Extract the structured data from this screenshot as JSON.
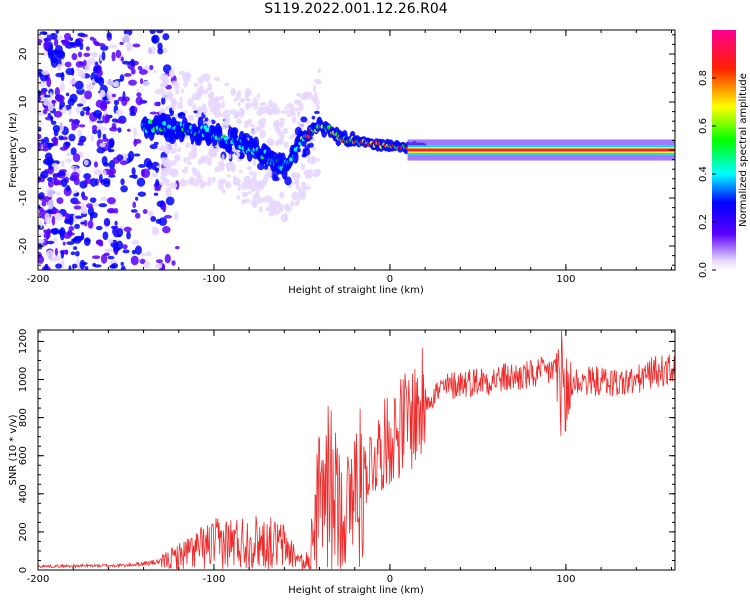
{
  "figure": {
    "title": "S119.2022.001.12.26.R04"
  },
  "chart_data": [
    {
      "type": "heatmap",
      "title": "",
      "xlabel": "Height of straight line (km)",
      "ylabel": "Frequency (Hz)",
      "xlim": [
        -200,
        162
      ],
      "ylim": [
        -25,
        25
      ],
      "x_ticks": [
        -200,
        -100,
        0,
        100
      ],
      "x_tick_labels": [
        "-200",
        "-100",
        "0",
        "100"
      ],
      "y_ticks": [
        -20,
        -10,
        0,
        10,
        20
      ],
      "y_tick_labels": [
        "-20",
        "-10",
        "0",
        "10",
        "20"
      ],
      "grid": false,
      "colormap": [
        "#ffffff",
        "#5a00ff",
        "#0000ff",
        "#00ffff",
        "#00ff00",
        "#ffff00",
        "#ff0000",
        "#ff0090"
      ],
      "colorbar": {
        "label": "Normalized spectral amplitude",
        "range": [
          0,
          1
        ],
        "ticks": [
          0.0,
          0.2,
          0.4,
          0.6,
          0.8
        ],
        "tick_labels": [
          "0.0",
          "0.2",
          "0.4",
          "0.6",
          "0.8"
        ]
      },
      "ridge": {
        "description_points": [
          {
            "x": -140,
            "f": 5.0
          },
          {
            "x": -120,
            "f": 4.5
          },
          {
            "x": -100,
            "f": 3.5
          },
          {
            "x": -90,
            "f": 2.0
          },
          {
            "x": -80,
            "f": 0.5
          },
          {
            "x": -70,
            "f": -1.5
          },
          {
            "x": -60,
            "f": -3.5
          },
          {
            "x": -55,
            "f": -1.0
          },
          {
            "x": -50,
            "f": 2.0
          },
          {
            "x": -45,
            "f": 4.0
          },
          {
            "x": -40,
            "f": 5.0
          },
          {
            "x": -35,
            "f": 4.5
          },
          {
            "x": -30,
            "f": 3.0
          },
          {
            "x": -25,
            "f": 2.0
          },
          {
            "x": -15,
            "f": 1.5
          },
          {
            "x": 0,
            "f": 0.8
          },
          {
            "x": 20,
            "f": 0.3
          },
          {
            "x": 60,
            "f": 0.0
          },
          {
            "x": 100,
            "f": 0.0
          },
          {
            "x": 162,
            "f": 0.0
          }
        ]
      }
    },
    {
      "type": "line",
      "title": "",
      "xlabel": "Height of straight line (km)",
      "ylabel": "SNR (10 * v/v)",
      "xlim": [
        -200,
        162
      ],
      "ylim": [
        0,
        1260
      ],
      "x_ticks": [
        -200,
        -100,
        0,
        100
      ],
      "x_tick_labels": [
        "-200",
        "-100",
        "0",
        "100"
      ],
      "y_ticks": [
        0,
        200,
        400,
        600,
        800,
        1000,
        1200
      ],
      "y_tick_labels": [
        "0",
        "200",
        "400",
        "600",
        "800",
        "1000",
        "1200"
      ],
      "grid": false,
      "series": [
        {
          "color": "#ee2a2a",
          "envelope": [
            {
              "x": -200,
              "y": 20
            },
            {
              "x": -150,
              "y": 25
            },
            {
              "x": -130,
              "y": 45
            },
            {
              "x": -120,
              "y": 80
            },
            {
              "x": -110,
              "y": 120
            },
            {
              "x": -100,
              "y": 150
            },
            {
              "x": -90,
              "y": 160
            },
            {
              "x": -80,
              "y": 165
            },
            {
              "x": -70,
              "y": 160
            },
            {
              "x": -60,
              "y": 140
            },
            {
              "x": -52,
              "y": 60
            },
            {
              "x": -48,
              "y": 30
            },
            {
              "x": -45,
              "y": 150
            },
            {
              "x": -40,
              "y": 400
            },
            {
              "x": -35,
              "y": 500
            },
            {
              "x": -30,
              "y": 380
            },
            {
              "x": -25,
              "y": 320
            },
            {
              "x": -20,
              "y": 450
            },
            {
              "x": -10,
              "y": 600
            },
            {
              "x": 0,
              "y": 720
            },
            {
              "x": 10,
              "y": 820
            },
            {
              "x": 20,
              "y": 900
            },
            {
              "x": 30,
              "y": 960
            },
            {
              "x": 40,
              "y": 990
            },
            {
              "x": 50,
              "y": 1000
            },
            {
              "x": 60,
              "y": 1010
            },
            {
              "x": 70,
              "y": 1020
            },
            {
              "x": 80,
              "y": 1030
            },
            {
              "x": 90,
              "y": 1050
            },
            {
              "x": 95,
              "y": 1080
            },
            {
              "x": 100,
              "y": 900
            },
            {
              "x": 105,
              "y": 1000
            },
            {
              "x": 120,
              "y": 1000
            },
            {
              "x": 130,
              "y": 990
            },
            {
              "x": 140,
              "y": 1000
            },
            {
              "x": 150,
              "y": 1050
            },
            {
              "x": 162,
              "y": 1060
            }
          ]
        }
      ]
    }
  ]
}
